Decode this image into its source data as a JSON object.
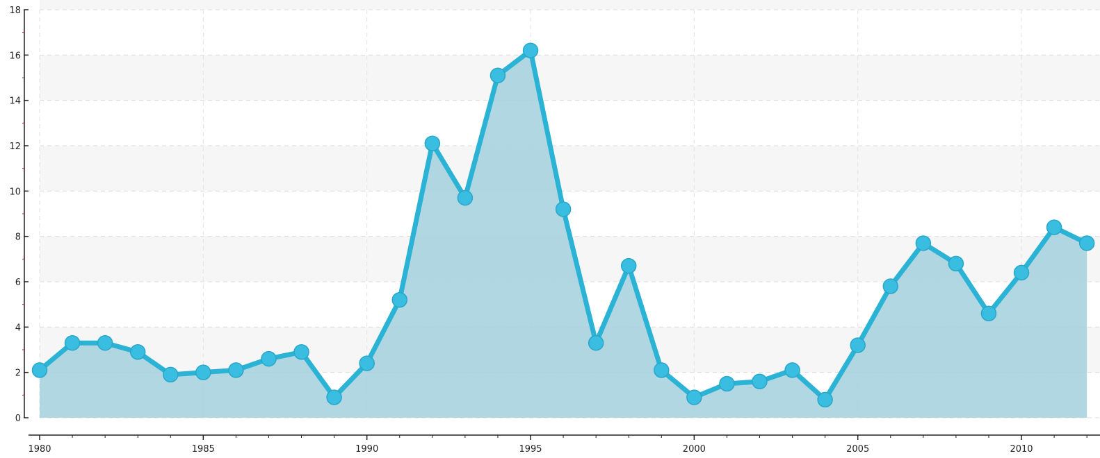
{
  "chart_data": {
    "type": "area",
    "title": "",
    "xlabel": "",
    "ylabel": "",
    "x": [
      1980,
      1981,
      1982,
      1983,
      1984,
      1985,
      1986,
      1987,
      1988,
      1989,
      1990,
      1991,
      1992,
      1993,
      1994,
      1995,
      1996,
      1997,
      1998,
      1999,
      2000,
      2001,
      2002,
      2003,
      2004,
      2005,
      2006,
      2007,
      2008,
      2009,
      2010,
      2011,
      2012
    ],
    "series": [
      {
        "values": [
          2.1,
          3.3,
          3.3,
          2.9,
          1.9,
          2.0,
          2.1,
          2.6,
          2.9,
          0.9,
          2.4,
          5.2,
          12.1,
          9.7,
          15.1,
          16.2,
          9.2,
          3.3,
          6.7,
          2.1,
          0.9,
          1.5,
          1.6,
          2.1,
          0.8,
          3.2,
          5.8,
          7.7,
          6.8,
          4.6,
          6.4,
          8.4,
          7.7
        ]
      }
    ],
    "xlim": [
      1980,
      2012.4
    ],
    "ylim": [
      0,
      18
    ],
    "x_ticks": [
      "1980",
      "1985",
      "1990",
      "1995",
      "2000",
      "2005",
      "2010"
    ],
    "y_ticks": [
      "0",
      "2",
      "4",
      "6",
      "8",
      "10",
      "12",
      "14",
      "16",
      "18"
    ],
    "grid": true,
    "legend": "none",
    "colors": {
      "line": "#2bb3d6",
      "marker": "#39bde0",
      "fill": "#a9d3e0",
      "band": "#f6f6f6"
    }
  }
}
